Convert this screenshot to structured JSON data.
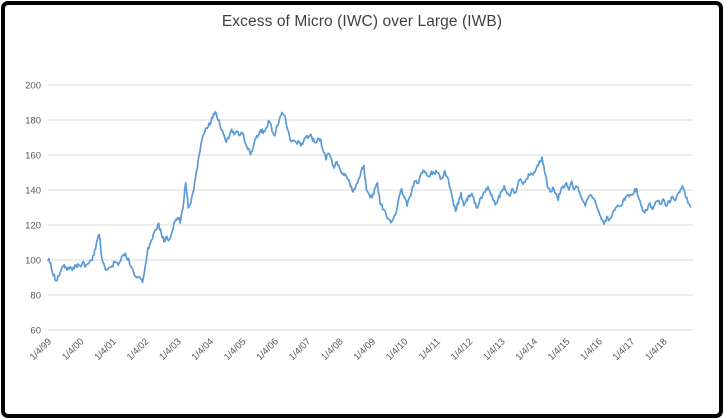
{
  "window": {
    "title": "Excess of Micro (IWC) over Large (IWB)"
  },
  "chart_data": {
    "type": "line",
    "title": "Excess of Micro (IWC) over Large (IWB)",
    "legend": "none",
    "grid": "horizontal",
    "ylim": [
      60,
      200
    ],
    "yticks": [
      200,
      180,
      160,
      140,
      120,
      100,
      80,
      60
    ],
    "x_tick_labels": [
      "1/4/99",
      "1/4/00",
      "1/4/01",
      "1/4/02",
      "1/4/03",
      "1/4/04",
      "1/4/05",
      "1/4/06",
      "1/4/07",
      "1/4/08",
      "1/4/09",
      "1/4/10",
      "1/4/11",
      "1/4/12",
      "1/4/13",
      "1/4/14",
      "1/4/15",
      "1/4/16",
      "1/4/17",
      "1/4/18"
    ],
    "series": [
      {
        "name": "Excess of Micro (IWC) over Large (IWB)",
        "start_label": "1/4/99",
        "frequency": "monthly",
        "values": [
          101,
          97,
          92,
          88,
          91,
          95,
          97,
          95,
          96,
          94,
          96,
          97,
          97,
          98,
          96,
          98,
          99,
          103,
          110,
          115,
          100,
          96,
          94,
          96,
          97,
          99,
          97,
          101,
          104,
          102,
          99,
          95,
          92,
          90,
          91,
          87,
          95,
          106,
          110,
          114,
          117,
          120,
          115,
          111,
          113,
          111,
          117,
          122,
          125,
          122,
          130,
          145,
          129,
          133,
          140,
          150,
          160,
          169,
          173,
          176,
          178,
          182,
          184,
          181,
          176,
          173,
          167,
          170,
          175,
          172,
          174,
          171,
          173,
          168,
          164,
          160,
          165,
          169,
          172,
          174,
          173,
          176,
          180,
          174,
          172,
          177,
          182,
          184,
          181,
          173,
          167,
          169,
          167,
          167,
          166,
          169,
          170,
          172,
          169,
          167,
          170,
          168,
          163,
          158,
          161,
          157,
          153,
          156,
          152,
          148,
          150,
          146,
          143,
          140,
          142,
          146,
          151,
          153,
          140,
          136,
          136,
          140,
          143,
          133,
          130,
          127,
          124,
          122,
          123,
          128,
          136,
          140,
          135,
          132,
          136,
          141,
          146,
          143,
          148,
          152,
          150,
          147,
          150,
          149,
          151,
          148,
          146,
          150,
          147,
          141,
          133,
          129,
          133,
          138,
          131,
          134,
          136,
          138,
          133,
          130,
          134,
          137,
          140,
          142,
          138,
          134,
          132,
          136,
          139,
          142,
          139,
          136,
          140,
          138,
          143,
          146,
          144,
          146,
          148,
          150,
          149,
          153,
          156,
          158,
          151,
          143,
          138,
          141,
          138,
          135,
          140,
          142,
          144,
          141,
          144,
          140,
          142,
          138,
          135,
          131,
          135,
          138,
          135,
          132,
          127,
          123,
          121,
          124,
          122,
          126,
          129,
          132,
          130,
          133,
          136,
          138,
          136,
          139,
          140,
          135,
          130,
          127,
          129,
          132,
          129,
          133,
          135,
          132,
          134,
          131,
          133,
          136,
          134,
          137,
          139,
          142,
          138,
          133,
          130
        ]
      }
    ],
    "colors": {
      "series_line": "#5B9BD5",
      "gridline": "#D9D9D9",
      "axis_text": "#595959",
      "title_text": "#3f3f3f",
      "frame_border": "#000000",
      "background": "#ffffff"
    }
  }
}
